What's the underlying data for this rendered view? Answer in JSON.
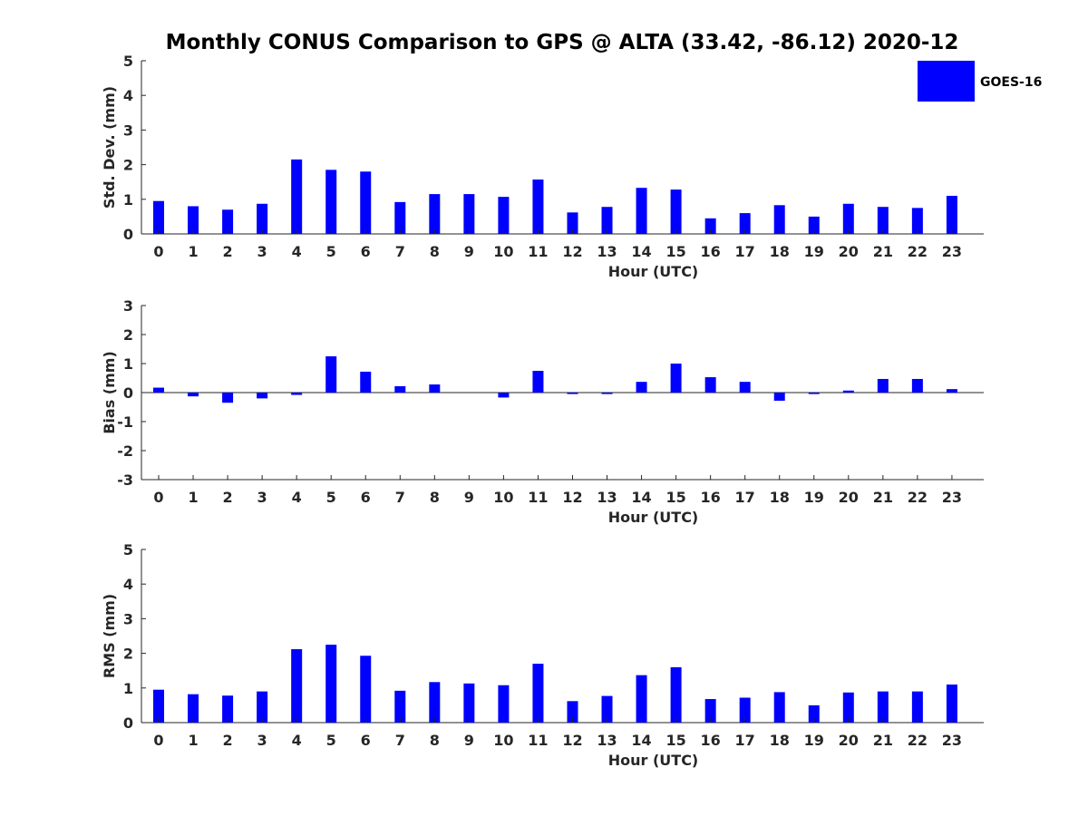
{
  "title": "Monthly CONUS Comparison to GPS @ ALTA (33.42, -86.12) 2020-12",
  "legend": {
    "label": "GOES-16",
    "color": "#0000ff"
  },
  "chart_data": [
    {
      "type": "bar",
      "xlabel": "Hour (UTC)",
      "ylabel": "Std. Dev. (mm)",
      "ylim": [
        0,
        5
      ],
      "yticks": [
        0,
        1,
        2,
        3,
        4,
        5
      ],
      "categories": [
        "0",
        "1",
        "2",
        "3",
        "4",
        "5",
        "6",
        "7",
        "8",
        "9",
        "10",
        "11",
        "12",
        "13",
        "14",
        "15",
        "16",
        "17",
        "18",
        "19",
        "20",
        "21",
        "22",
        "23"
      ],
      "series": [
        {
          "name": "GOES-16",
          "color": "#0000ff",
          "values": [
            0.95,
            0.8,
            0.7,
            0.87,
            2.15,
            1.85,
            1.8,
            0.92,
            1.15,
            1.15,
            1.07,
            1.57,
            0.62,
            0.78,
            1.33,
            1.28,
            0.45,
            0.6,
            0.83,
            0.5,
            0.87,
            0.78,
            0.75,
            1.1
          ]
        }
      ]
    },
    {
      "type": "bar",
      "xlabel": "Hour (UTC)",
      "ylabel": "Bias (mm)",
      "ylim": [
        -3,
        3
      ],
      "yticks": [
        -3,
        -2,
        -1,
        0,
        1,
        2,
        3
      ],
      "categories": [
        "0",
        "1",
        "2",
        "3",
        "4",
        "5",
        "6",
        "7",
        "8",
        "9",
        "10",
        "11",
        "12",
        "13",
        "14",
        "15",
        "16",
        "17",
        "18",
        "19",
        "20",
        "21",
        "22",
        "23"
      ],
      "series": [
        {
          "name": "GOES-16",
          "color": "#0000ff",
          "values": [
            0.17,
            -0.13,
            -0.35,
            -0.2,
            -0.08,
            1.25,
            0.72,
            0.22,
            0.28,
            0.0,
            -0.17,
            0.75,
            -0.05,
            -0.05,
            0.37,
            1.0,
            0.53,
            0.37,
            -0.28,
            -0.05,
            0.07,
            0.47,
            0.47,
            0.12
          ]
        }
      ]
    },
    {
      "type": "bar",
      "xlabel": "Hour (UTC)",
      "ylabel": "RMS (mm)",
      "ylim": [
        0,
        5
      ],
      "yticks": [
        0,
        1,
        2,
        3,
        4,
        5
      ],
      "categories": [
        "0",
        "1",
        "2",
        "3",
        "4",
        "5",
        "6",
        "7",
        "8",
        "9",
        "10",
        "11",
        "12",
        "13",
        "14",
        "15",
        "16",
        "17",
        "18",
        "19",
        "20",
        "21",
        "22",
        "23"
      ],
      "series": [
        {
          "name": "GOES-16",
          "color": "#0000ff",
          "values": [
            0.95,
            0.82,
            0.78,
            0.9,
            2.12,
            2.25,
            1.93,
            0.92,
            1.17,
            1.13,
            1.08,
            1.7,
            0.62,
            0.77,
            1.37,
            1.6,
            0.68,
            0.72,
            0.88,
            0.5,
            0.87,
            0.9,
            0.9,
            1.1
          ]
        }
      ]
    }
  ]
}
